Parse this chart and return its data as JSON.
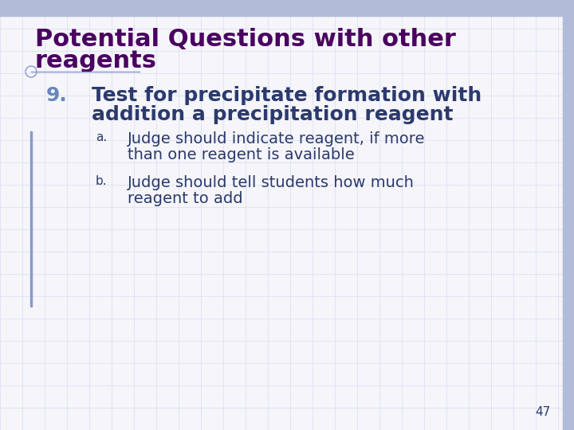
{
  "background_color": "#f5f5fa",
  "title_text_line1": "Potential Questions with other",
  "title_text_line2": "reagents",
  "title_color": "#4a0060",
  "title_fontsize": 22,
  "divider_color": "#8899cc",
  "item_number": "9.",
  "item_number_color": "#6688bb",
  "item_number_fontsize": 18,
  "item_text_line1": "Test for precipitate formation with",
  "item_text_line2": "addition a precipitation reagent",
  "item_text_color": "#2b3a6e",
  "item_text_fontsize": 18,
  "sub_a_label": "a.",
  "sub_a_line1": "Judge should indicate reagent, if more",
  "sub_a_line2": "than one reagent is available",
  "sub_b_label": "b.",
  "sub_b_line1": "Judge should tell students how much",
  "sub_b_line2": "reagent to add",
  "sub_text_color": "#2b3a6e",
  "sub_text_fontsize": 14,
  "sub_label_fontsize": 11,
  "page_number": "47",
  "page_number_color": "#2b3a6e",
  "page_number_fontsize": 11,
  "top_bar_color": "#b0bcd8",
  "right_bar_color": "#b0bcd8",
  "grid_color": "#d8dff0",
  "circle_color": "#8899cc",
  "left_bar_color": "#8899cc"
}
